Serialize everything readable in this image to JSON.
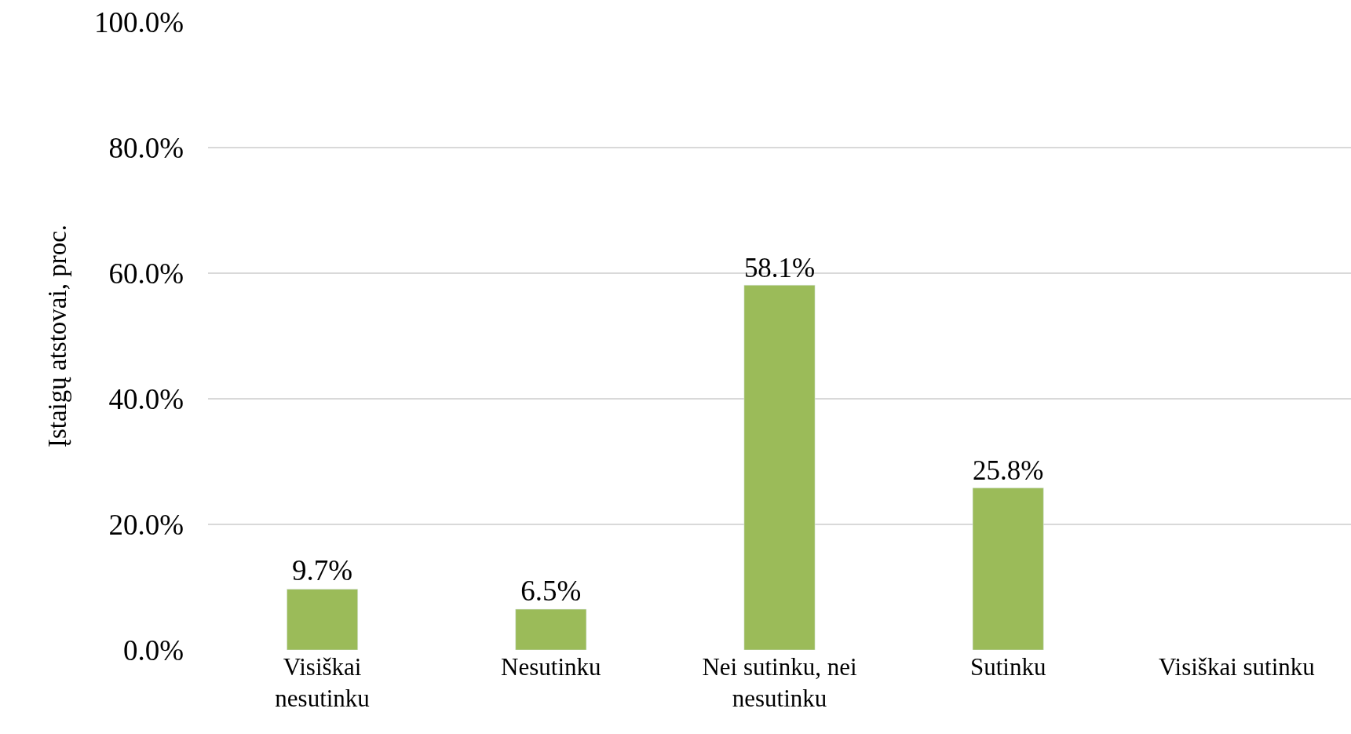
{
  "chart_data": {
    "type": "bar",
    "ylabel": "Įstaigų atstovai, proc.",
    "categories": [
      "Visiškai nesutinku",
      "Nesutinku",
      "Nei sutinku, nei nesutinku",
      "Sutinku",
      "Visiškai sutinku"
    ],
    "values": [
      9.7,
      6.5,
      58.1,
      25.8,
      null
    ],
    "value_labels": [
      "9.7%",
      "6.5%",
      "58.1%",
      "25.8%",
      null
    ],
    "color": "#9bbb59",
    "ylim": [
      0,
      100
    ],
    "yticks": [
      {
        "value": 0,
        "label": "0.0%"
      },
      {
        "value": 20,
        "label": "20.0%"
      },
      {
        "value": 40,
        "label": "40.0%"
      },
      {
        "value": 60,
        "label": "60.0%"
      },
      {
        "value": 80,
        "label": "80.0%"
      },
      {
        "value": 100,
        "label": "100.0%"
      }
    ],
    "grid": "y",
    "legend": false
  }
}
